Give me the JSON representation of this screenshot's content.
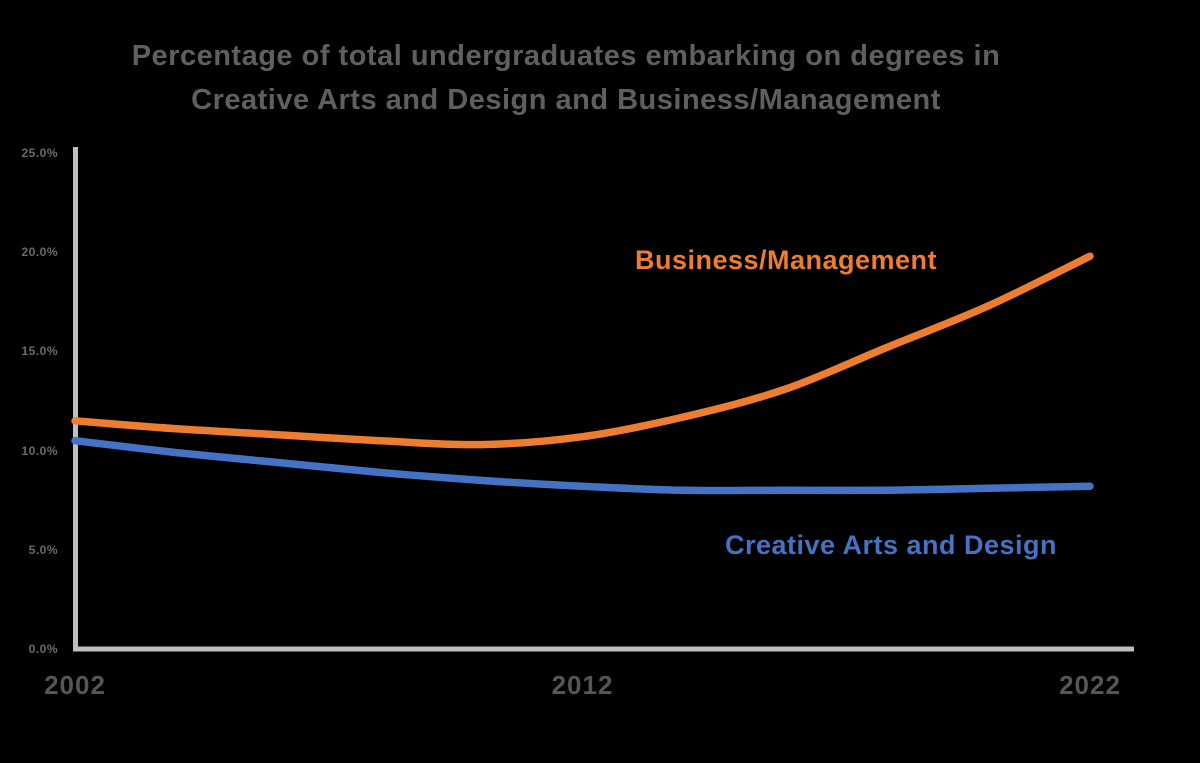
{
  "page": {
    "background": "#000000"
  },
  "title": {
    "line1": "Percentage of total undergraduates embarking on degrees in",
    "line2": "Creative Arts and Design and Business/Management",
    "color": "#5f5f5f"
  },
  "chart_data": {
    "type": "line",
    "x": [
      2002,
      2004,
      2006,
      2008,
      2010,
      2012,
      2014,
      2016,
      2018,
      2020,
      2022
    ],
    "series": [
      {
        "name": "Business/Management",
        "color": "#ED7D31",
        "values": [
          11.5,
          11.1,
          10.8,
          10.5,
          10.3,
          10.7,
          11.7,
          13.1,
          15.2,
          17.3,
          19.8
        ]
      },
      {
        "name": "Creative Arts and Design",
        "color": "#4472C4",
        "values": [
          10.5,
          9.9,
          9.4,
          8.9,
          8.5,
          8.2,
          8.0,
          8.0,
          8.0,
          8.1,
          8.2
        ]
      }
    ],
    "title": "Percentage of total undergraduates embarking on degrees in Creative Arts and Design and Business/Management",
    "xlabel": "",
    "ylabel": "",
    "xlim": [
      2002,
      2022
    ],
    "ylim": [
      0,
      25
    ],
    "x_ticks": [
      {
        "value": 2002,
        "label": "2002"
      },
      {
        "value": 2012,
        "label": "2012"
      },
      {
        "value": 2022,
        "label": "2022"
      }
    ],
    "y_ticks": [
      {
        "value": 25,
        "label": "25.0%"
      },
      {
        "value": 20,
        "label": "20.0%"
      },
      {
        "value": 15,
        "label": "15.0%"
      },
      {
        "value": 10,
        "label": "10.0%"
      },
      {
        "value": 5,
        "label": "5.0%"
      },
      {
        "value": 0,
        "label": "0.0%"
      }
    ],
    "grid": false,
    "legend_position": "inline-labels",
    "axis_color": "#BFBFBF",
    "tick_label_color": "#5f5f5f"
  }
}
